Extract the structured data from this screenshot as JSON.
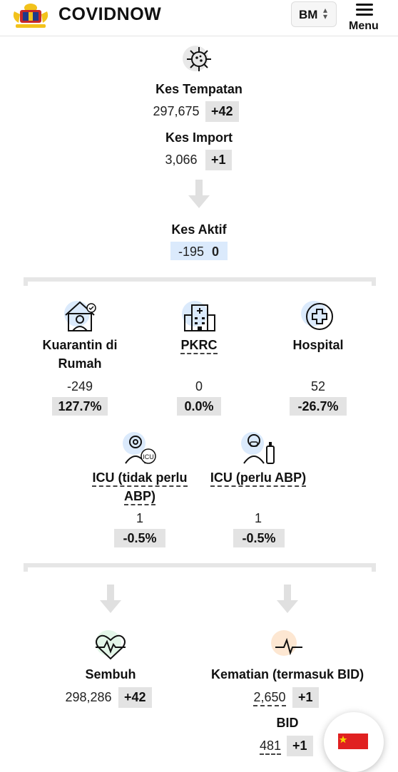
{
  "header": {
    "brand": "COVIDNOW",
    "lang_label": "BM",
    "menu_label": "Menu"
  },
  "local": {
    "title": "Kes Tempatan",
    "value": "297,675",
    "delta": "+42"
  },
  "import": {
    "title": "Kes Import",
    "value": "3,066",
    "delta": "+1"
  },
  "active": {
    "title": "Kes Aktif",
    "value": "-195",
    "delta": "0"
  },
  "home": {
    "title_line1": "Kuarantin di",
    "title_line2": "Rumah",
    "value": "-249",
    "pct": "127.7%"
  },
  "pkrc": {
    "title": "PKRC",
    "value": "0",
    "pct": "0.0%"
  },
  "hospital": {
    "title": "Hospital",
    "value": "52",
    "pct": "-26.7%"
  },
  "icu_no": {
    "title_line1": "ICU (tidak perlu",
    "title_line2": "ABP)",
    "value": "1",
    "pct": "-0.5%"
  },
  "icu_yes": {
    "title": "ICU (perlu ABP)",
    "value": "1",
    "pct": "-0.5%"
  },
  "recovered": {
    "title": "Sembuh",
    "value": "298,286",
    "delta": "+42"
  },
  "deaths": {
    "title": "Kematian (termasuk BID)",
    "value": "2,650",
    "delta": "+1"
  },
  "bid": {
    "title": "BID",
    "value": "481",
    "delta": "+1"
  },
  "icon_labels": {
    "icu": "ICU"
  },
  "colors": {
    "active_badge": "#dbeafc",
    "badge": "#e3e3e3",
    "flag": "#e02020",
    "icon_bg_blue": "#dbeafc",
    "icon_bg_green": "#e3f6e8",
    "icon_bg_orange": "#fde7d2"
  }
}
